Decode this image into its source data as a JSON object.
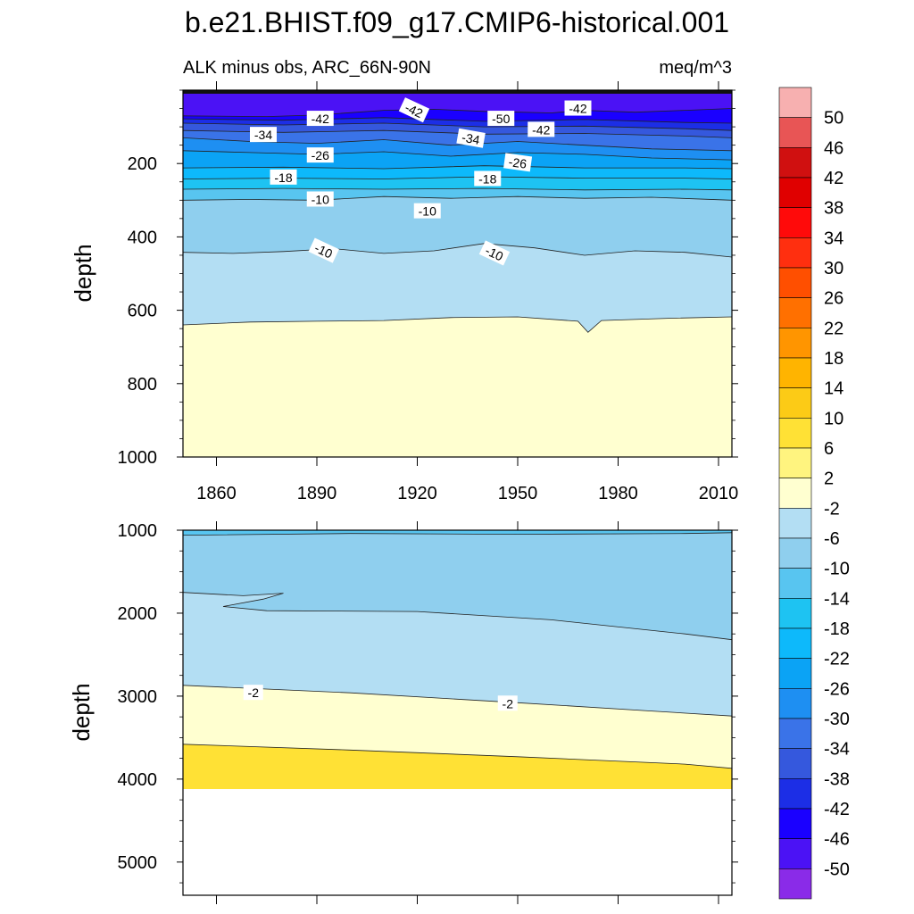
{
  "figure": {
    "title": "b.e21.BHIST.f09_g17.CMIP6-historical.001",
    "subtitle_left": "ALK minus obs, ARC_66N-90N",
    "subtitle_right": "meq/m^3"
  },
  "colors": {
    "levels": [
      -50,
      -46,
      -42,
      -38,
      -34,
      -30,
      -26,
      -22,
      -18,
      -14,
      -10,
      -6,
      -2,
      2,
      6,
      10,
      14,
      18,
      22,
      26,
      30,
      34,
      38,
      42,
      46,
      50
    ],
    "fills": [
      "#8a2be8",
      "#4b12f5",
      "#1a00ff",
      "#1c2ee6",
      "#3558dd",
      "#3a73e8",
      "#1e8ff2",
      "#0ba3f5",
      "#0db9fb",
      "#1ec3f2",
      "#58c5f0",
      "#8fcfee",
      "#b3def3",
      "#ffffd0",
      "#fff47f",
      "#ffe135",
      "#fccb16",
      "#ffb400",
      "#ff9500",
      "#ff7000",
      "#ff4f00",
      "#ff2f0f",
      "#ff0a0a",
      "#e00000",
      "#d01010",
      "#e85555",
      "#f7b0b0"
    ]
  },
  "chart_data": [
    {
      "type": "contour",
      "panel": "upper",
      "title": "ALK minus obs, ARC_66N-90N",
      "units": "meq/m^3",
      "xlabel": "",
      "ylabel": "depth",
      "xlim": [
        1850,
        2014
      ],
      "ylim": [
        0,
        1000
      ],
      "y_reversed": true,
      "xticks": [
        1860,
        1890,
        1920,
        1950,
        1980,
        2010
      ],
      "yticks": [
        200,
        400,
        600,
        800,
        1000
      ],
      "bands": [
        {
          "value": -2,
          "boundary": [
            [
              1850,
              640
            ],
            [
              1870,
              632
            ],
            [
              1890,
              630
            ],
            [
              1910,
              628
            ],
            [
              1930,
              620
            ],
            [
              1950,
              618
            ],
            [
              1968,
              630
            ],
            [
              1971,
              660
            ],
            [
              1975,
              628
            ],
            [
              1995,
              622
            ],
            [
              2014,
              618
            ]
          ]
        },
        {
          "value": -6,
          "boundary": [
            [
              1850,
              442
            ],
            [
              1865,
              445
            ],
            [
              1880,
              440
            ],
            [
              1895,
              432
            ],
            [
              1910,
              445
            ],
            [
              1925,
              438
            ],
            [
              1940,
              418
            ],
            [
              1955,
              430
            ],
            [
              1970,
              450
            ],
            [
              1985,
              438
            ],
            [
              2000,
              442
            ],
            [
              2014,
              455
            ]
          ]
        },
        {
          "value": -10,
          "boundary": [
            [
              1850,
              300
            ],
            [
              1870,
              298
            ],
            [
              1890,
              300
            ],
            [
              1910,
              290
            ],
            [
              1930,
              295
            ],
            [
              1950,
              290
            ],
            [
              1970,
              295
            ],
            [
              1990,
              292
            ],
            [
              2014,
              300
            ]
          ]
        },
        {
          "value": -14,
          "boundary": [
            [
              1850,
              270
            ],
            [
              1880,
              268
            ],
            [
              1910,
              270
            ],
            [
              1940,
              268
            ],
            [
              1970,
              272
            ],
            [
              2000,
              270
            ],
            [
              2014,
              272
            ]
          ]
        },
        {
          "value": -18,
          "boundary": [
            [
              1850,
              242
            ],
            [
              1880,
              240
            ],
            [
              1910,
              242
            ],
            [
              1940,
              236
            ],
            [
              1970,
              240
            ],
            [
              2000,
              240
            ],
            [
              2014,
              242
            ]
          ]
        },
        {
          "value": -22,
          "boundary": [
            [
              1850,
              212
            ],
            [
              1880,
              210
            ],
            [
              1910,
              214
            ],
            [
              1940,
              206
            ],
            [
              1970,
              212
            ],
            [
              2000,
              212
            ],
            [
              2014,
              214
            ]
          ]
        },
        {
          "value": -26,
          "boundary": [
            [
              1850,
              165
            ],
            [
              1870,
              170
            ],
            [
              1890,
              175
            ],
            [
              1910,
              168
            ],
            [
              1930,
              180
            ],
            [
              1950,
              170
            ],
            [
              1970,
              175
            ],
            [
              1990,
              185
            ],
            [
              2014,
              190
            ]
          ]
        },
        {
          "value": -30,
          "boundary": [
            [
              1850,
              130
            ],
            [
              1870,
              140
            ],
            [
              1890,
              145
            ],
            [
              1910,
              135
            ],
            [
              1930,
              150
            ],
            [
              1950,
              140
            ],
            [
              1970,
              150
            ],
            [
              1990,
              160
            ],
            [
              2014,
              165
            ]
          ]
        },
        {
          "value": -34,
          "boundary": [
            [
              1850,
              110
            ],
            [
              1880,
              115
            ],
            [
              1910,
              110
            ],
            [
              1940,
              120
            ],
            [
              1970,
              118
            ],
            [
              2000,
              125
            ],
            [
              2014,
              130
            ]
          ]
        },
        {
          "value": -38,
          "boundary": [
            [
              1850,
              90
            ],
            [
              1880,
              95
            ],
            [
              1910,
              90
            ],
            [
              1940,
              100
            ],
            [
              1970,
              98
            ],
            [
              2000,
              105
            ],
            [
              2014,
              110
            ]
          ]
        },
        {
          "value": -42,
          "boundary": [
            [
              1850,
              78
            ],
            [
              1880,
              82
            ],
            [
              1910,
              75
            ],
            [
              1940,
              85
            ],
            [
              1970,
              80
            ],
            [
              2000,
              88
            ],
            [
              2014,
              90
            ]
          ]
        },
        {
          "value": -46,
          "boundary": [
            [
              1850,
              70
            ],
            [
              1875,
              72
            ],
            [
              1890,
              68
            ],
            [
              1910,
              55
            ],
            [
              1925,
              52
            ],
            [
              1940,
              58
            ],
            [
              1960,
              62
            ],
            [
              1970,
              55
            ],
            [
              1985,
              60
            ],
            [
              2000,
              55
            ],
            [
              2014,
              50
            ]
          ]
        }
      ],
      "top_band_value": -50,
      "line_labels": [
        {
          "text": "-42",
          "x": 1891,
          "y": 78
        },
        {
          "text": "-42",
          "x": 1919,
          "y": 55,
          "angle": 25
        },
        {
          "text": "-50",
          "x": 1945,
          "y": 78
        },
        {
          "text": "-42",
          "x": 1968,
          "y": 50
        },
        {
          "text": "-42",
          "x": 1957,
          "y": 108
        },
        {
          "text": "-34",
          "x": 1874,
          "y": 122
        },
        {
          "text": "-34",
          "x": 1936,
          "y": 132,
          "angle": 10
        },
        {
          "text": "-26",
          "x": 1891,
          "y": 178
        },
        {
          "text": "-26",
          "x": 1950,
          "y": 198,
          "angle": 8
        },
        {
          "text": "-18",
          "x": 1880,
          "y": 238
        },
        {
          "text": "-18",
          "x": 1941,
          "y": 242
        },
        {
          "text": "-10",
          "x": 1891,
          "y": 298
        },
        {
          "text": "-10",
          "x": 1923,
          "y": 330
        },
        {
          "text": "-10",
          "x": 1892,
          "y": 438,
          "angle": 25
        },
        {
          "text": "-10",
          "x": 1943,
          "y": 445,
          "angle": 25
        }
      ]
    },
    {
      "type": "contour",
      "panel": "lower",
      "xlabel": "",
      "ylabel": "depth",
      "xlim": [
        1850,
        2014
      ],
      "ylim": [
        1000,
        5400
      ],
      "y_reversed": true,
      "xticks": [
        1860,
        1890,
        1920,
        1950,
        1980,
        2010
      ],
      "yticks": [
        1000,
        2000,
        3000,
        4000,
        5000
      ],
      "data_bottom": 4120,
      "bands": [
        {
          "value": -10,
          "boundary": [
            [
              1850,
              1060
            ],
            [
              1900,
              1040
            ],
            [
              1950,
              1050
            ],
            [
              2000,
              1040
            ],
            [
              2014,
              1030
            ]
          ]
        },
        {
          "value": -6,
          "boundary": [
            [
              1850,
              1750
            ],
            [
              1868,
              1790
            ],
            [
              1880,
              1760
            ],
            [
              1874,
              1830
            ],
            [
              1862,
              1920
            ],
            [
              1875,
              1970
            ],
            [
              1920,
              1980
            ],
            [
              1960,
              2080
            ],
            [
              2000,
              2250
            ],
            [
              2014,
              2320
            ]
          ]
        },
        {
          "value": -2,
          "boundary": [
            [
              1850,
              2870
            ],
            [
              1900,
              2960
            ],
            [
              1950,
              3080
            ],
            [
              1990,
              3180
            ],
            [
              2014,
              3240
            ]
          ]
        },
        {
          "value": 2,
          "boundary": [
            [
              1850,
              3580
            ],
            [
              1900,
              3650
            ],
            [
              1950,
              3730
            ],
            [
              2000,
              3820
            ],
            [
              2014,
              3870
            ]
          ]
        }
      ],
      "deep_band_value": 6,
      "line_labels": [
        {
          "text": "-2",
          "x": 1871,
          "y": 2960
        },
        {
          "text": "-2",
          "x": 1947,
          "y": 3090
        }
      ]
    }
  ],
  "colorbar": {
    "labels": [
      "50",
      "46",
      "42",
      "38",
      "34",
      "30",
      "26",
      "22",
      "18",
      "14",
      "10",
      "6",
      "2",
      "-2",
      "-6",
      "-10",
      "-14",
      "-18",
      "-22",
      "-26",
      "-30",
      "-34",
      "-38",
      "-42",
      "-46",
      "-50"
    ]
  }
}
